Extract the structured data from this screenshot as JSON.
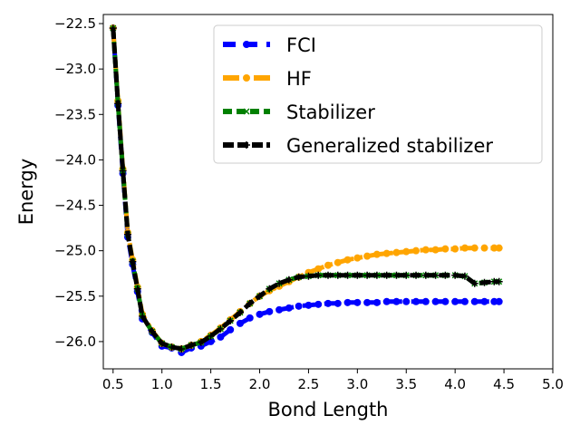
{
  "chart_data": {
    "type": "line",
    "title": "",
    "xlabel": "Bond Length",
    "ylabel": "Energy",
    "xlim": [
      0.4,
      5.0
    ],
    "ylim": [
      -26.3,
      -22.4
    ],
    "xticks": [
      0.5,
      1.0,
      1.5,
      2.0,
      2.5,
      3.0,
      3.5,
      4.0,
      4.5,
      5.0
    ],
    "xtick_labels": [
      "0.5",
      "1.0",
      "1.5",
      "2.0",
      "2.5",
      "3.0",
      "3.5",
      "4.0",
      "4.5",
      "5.0"
    ],
    "yticks": [
      -22.5,
      -23.0,
      -23.5,
      -24.0,
      -24.5,
      -25.0,
      -25.5,
      -26.0
    ],
    "ytick_labels": [
      "−22.5",
      "−23.0",
      "−23.5",
      "−24.0",
      "−24.5",
      "−25.0",
      "−25.5",
      "−26.0"
    ],
    "legend_position": "top-right",
    "x": [
      0.5,
      0.55,
      0.6,
      0.65,
      0.7,
      0.75,
      0.8,
      0.9,
      1.0,
      1.1,
      1.2,
      1.3,
      1.4,
      1.5,
      1.6,
      1.7,
      1.8,
      1.9,
      2.0,
      2.1,
      2.2,
      2.3,
      2.4,
      2.5,
      2.6,
      2.7,
      2.8,
      2.9,
      3.0,
      3.1,
      3.2,
      3.3,
      3.4,
      3.5,
      3.6,
      3.7,
      3.8,
      3.9,
      4.0,
      4.1,
      4.2,
      4.3,
      4.4,
      4.45
    ],
    "series": [
      {
        "name": "FCI",
        "color": "#0000ff",
        "marker": "circle",
        "values": [
          -22.55,
          -23.4,
          -24.15,
          -24.85,
          -25.15,
          -25.45,
          -25.75,
          -25.9,
          -26.05,
          -26.07,
          -26.12,
          -26.07,
          -26.05,
          -26.0,
          -25.95,
          -25.87,
          -25.8,
          -25.74,
          -25.7,
          -25.67,
          -25.65,
          -25.63,
          -25.61,
          -25.6,
          -25.59,
          -25.58,
          -25.58,
          -25.57,
          -25.57,
          -25.57,
          -25.57,
          -25.56,
          -25.56,
          -25.56,
          -25.56,
          -25.56,
          -25.56,
          -25.56,
          -25.56,
          -25.56,
          -25.56,
          -25.56,
          -25.56,
          -25.56
        ]
      },
      {
        "name": "HF",
        "color": "#ffa500",
        "marker": "circle",
        "values": [
          -22.55,
          -23.35,
          -24.1,
          -24.8,
          -25.1,
          -25.4,
          -25.7,
          -25.88,
          -26.02,
          -26.06,
          -26.08,
          -26.04,
          -26.0,
          -25.93,
          -25.85,
          -25.76,
          -25.67,
          -25.58,
          -25.5,
          -25.44,
          -25.39,
          -25.34,
          -25.29,
          -25.24,
          -25.2,
          -25.16,
          -25.13,
          -25.1,
          -25.08,
          -25.06,
          -25.04,
          -25.03,
          -25.02,
          -25.01,
          -25.0,
          -24.99,
          -24.99,
          -24.98,
          -24.98,
          -24.97,
          -24.97,
          -24.97,
          -24.97,
          -24.97
        ]
      },
      {
        "name": "Stabilizer",
        "color": "#008000",
        "marker": "x",
        "values": [
          -22.55,
          -23.38,
          -24.12,
          -24.82,
          -25.12,
          -25.42,
          -25.72,
          -25.89,
          -26.02,
          -26.06,
          -26.08,
          -26.04,
          -26.01,
          -25.94,
          -25.86,
          -25.77,
          -25.68,
          -25.58,
          -25.5,
          -25.42,
          -25.36,
          -25.32,
          -25.29,
          -25.28,
          -25.27,
          -25.27,
          -25.27,
          -25.27,
          -25.27,
          -25.27,
          -25.27,
          -25.27,
          -25.27,
          -25.27,
          -25.27,
          -25.27,
          -25.27,
          -25.27,
          -25.27,
          -25.28,
          -25.36,
          -25.35,
          -25.34,
          -25.34
        ]
      },
      {
        "name": "Generalized stabilizer",
        "color": "#000000",
        "marker": "plus",
        "values": [
          -22.55,
          -23.38,
          -24.12,
          -24.82,
          -25.12,
          -25.42,
          -25.72,
          -25.89,
          -26.02,
          -26.06,
          -26.08,
          -26.04,
          -26.01,
          -25.94,
          -25.86,
          -25.77,
          -25.68,
          -25.58,
          -25.5,
          -25.42,
          -25.36,
          -25.32,
          -25.29,
          -25.28,
          -25.27,
          -25.27,
          -25.27,
          -25.27,
          -25.27,
          -25.27,
          -25.27,
          -25.27,
          -25.27,
          -25.27,
          -25.27,
          -25.27,
          -25.27,
          -25.27,
          -25.27,
          -25.28,
          -25.36,
          -25.35,
          -25.34,
          -25.34
        ]
      }
    ]
  }
}
